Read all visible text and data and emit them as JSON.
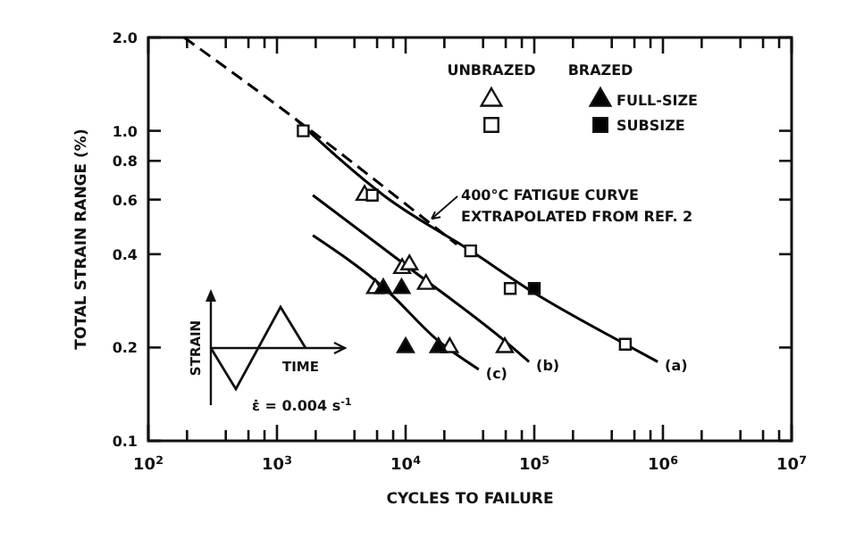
{
  "chart_data": {
    "type": "scatter",
    "xlabel": "CYCLES TO FAILURE",
    "ylabel": "TOTAL STRAIN RANGE (%)",
    "log": "xy",
    "grid": false,
    "legend": "top right",
    "xlim": [
      100,
      10000000
    ],
    "ylim": [
      0.1,
      2.0
    ],
    "xticks": [
      {
        "value": 100,
        "label": "10$^{2}$"
      },
      {
        "value": 200,
        "label": null
      },
      {
        "value": 400,
        "label": null
      },
      {
        "value": 600,
        "label": null
      },
      {
        "value": 800,
        "label": null
      },
      {
        "value": 1000,
        "label": "10$^{3}$"
      },
      {
        "value": 2000,
        "label": null
      },
      {
        "value": 4000,
        "label": null
      },
      {
        "value": 6000,
        "label": null
      },
      {
        "value": 8000,
        "label": null
      },
      {
        "value": 10000,
        "label": "10$^{4}$"
      },
      {
        "value": 20000,
        "label": null
      },
      {
        "value": 40000,
        "label": null
      },
      {
        "value": 60000,
        "label": null
      },
      {
        "value": 80000,
        "label": null
      },
      {
        "value": 100000,
        "label": "10$^{5}$"
      },
      {
        "value": 200000,
        "label": null
      },
      {
        "value": 400000,
        "label": null
      },
      {
        "value": 600000,
        "label": null
      },
      {
        "value": 800000,
        "label": null
      },
      {
        "value": 1000000,
        "label": "10$^{6}$"
      },
      {
        "value": 2000000,
        "label": null
      },
      {
        "value": 4000000,
        "label": null
      },
      {
        "value": 6000000,
        "label": null
      },
      {
        "value": 8000000,
        "label": null
      },
      {
        "value": 10000000,
        "label": "10$^{7}$"
      }
    ],
    "yticks": [
      0.1,
      0.2,
      0.4,
      0.6,
      0.8,
      {
        "value": 1,
        "label": "1.0"
      },
      {
        "value": 2,
        "label": "2.0"
      }
    ],
    "series": [
      {
        "type": "scatter",
        "marker": "triangle",
        "color": "#ffffff",
        "x": [
          4800,
          9400,
          10700,
          5800,
          14400,
          22000,
          59000
        ],
        "values": [
          0.62,
          0.36,
          0.37,
          0.31,
          0.32,
          0.2,
          0.2
        ]
      },
      {
        "type": "scatter",
        "marker": "square",
        "color": "#ffffff",
        "x": [
          1600,
          5500,
          32000,
          65000,
          510000
        ],
        "values": [
          1.0,
          0.62,
          0.41,
          0.31,
          0.205
        ]
      },
      {
        "name": "FULL-SIZE",
        "type": "scatter",
        "marker": "triangle",
        "color": "#000000",
        "x": [
          6700,
          9300,
          10000,
          18000
        ],
        "values": [
          0.31,
          0.31,
          0.2,
          0.2
        ]
      },
      {
        "name": "SUBSIZE",
        "type": "scatter",
        "marker": "square",
        "color": "#000000",
        "x": [
          100000
        ],
        "values": [
          0.31
        ]
      },
      {
        "type": "line",
        "line_style": "dashed",
        "color": "#000000",
        "x": [
          190,
          1400,
          25000
        ],
        "values": [
          2.0,
          1.09,
          0.43
        ]
      },
      {
        "type": "line",
        "line_style": "solid",
        "color": "#000000",
        "x": [
          1400,
          6900,
          32000,
          100000,
          510000,
          910000
        ],
        "values": [
          1.09,
          0.615,
          0.41,
          0.3,
          0.205,
          0.18
        ]
      },
      {
        "type": "line",
        "line_style": "solid",
        "color": "#000000",
        "x": [
          1900,
          11800,
          59000,
          91000
        ],
        "values": [
          0.62,
          0.35,
          0.21,
          0.18
        ]
      },
      {
        "type": "line",
        "line_style": "solid",
        "color": "#000000",
        "x": [
          1900,
          6900,
          18000,
          37000
        ],
        "values": [
          0.46,
          0.31,
          0.21,
          0.17
        ]
      }
    ],
    "annotations": [
      "UNBRAZED",
      "BRAZED",
      {
        "text": "400°C FATIGUE CURVE\nEXTRAPOLATED FROM REF. 2",
        "x": 14000,
        "y": 0.5
      },
      {
        "text": "(a)",
        "x": 910000,
        "y": 0.18
      },
      {
        "text": "(b)",
        "x": 91000,
        "y": 0.18
      },
      {
        "text": "(c)",
        "x": 37000,
        "y": 0.17
      },
      "STRAIN",
      "TIME",
      "ε̇ = 0.004 s$^{-1}$"
    ]
  }
}
